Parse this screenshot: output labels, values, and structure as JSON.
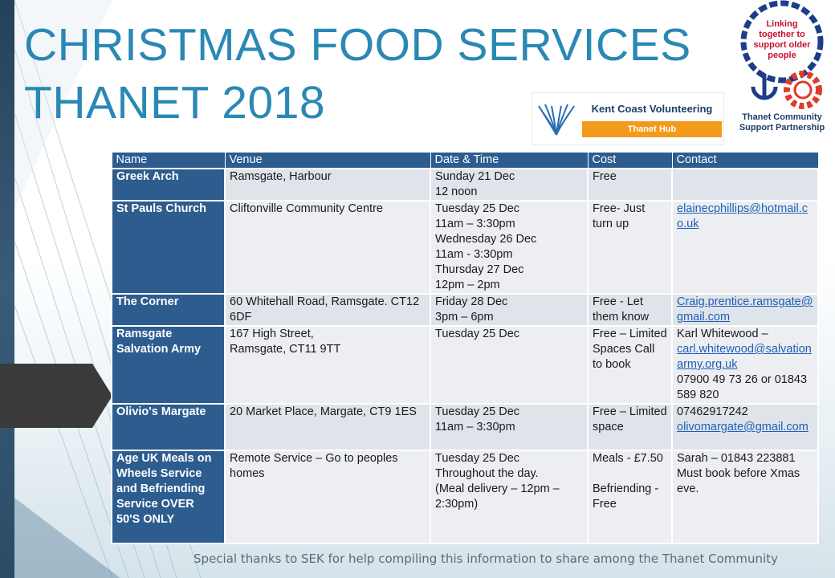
{
  "title": {
    "line1": "CHRISTMAS FOOD SERVICES",
    "line2": "THANET 2018"
  },
  "logos": {
    "kcv": {
      "name": "Kent Coast Volunteering",
      "hub": "Thanet Hub",
      "icon": "butterfly-wings-icon"
    },
    "tcsp": {
      "ring_text": "Linking together to support older people",
      "org": "Thanet Community Support Partnership",
      "icon": "chain-ring-icon"
    }
  },
  "table": {
    "headers": [
      "Name",
      "Venue",
      "Date & Time",
      "Cost",
      "Contact"
    ],
    "rows": [
      {
        "name": "Greek Arch",
        "venue": "Ramsgate, Harbour",
        "date": "Sunday 21 Dec\n12 noon",
        "cost": "Free",
        "contact": "",
        "link": ""
      },
      {
        "name": "St Pauls Church",
        "venue": "Cliftonville Community Centre",
        "date": "Tuesday 25 Dec\n11am – 3:30pm\nWednesday 26 Dec\n11am - 3:30pm\nThursday 27 Dec\n12pm – 2pm",
        "cost": "Free- Just turn up",
        "contact": "",
        "link": "elainecphillips@hotmail.co.uk"
      },
      {
        "name": "The Corner",
        "venue": "60 Whitehall Road, Ramsgate. CT12 6DF",
        "date": "Friday 28 Dec\n3pm – 6pm",
        "cost": "Free - Let them know",
        "contact": "",
        "link": "Craig.prentice.ramsgate@gmail.com"
      },
      {
        "name": "Ramsgate Salvation Army",
        "venue": "167 High Street,\nRamsgate, CT11 9TT",
        "date": "Tuesday 25 Dec",
        "cost": "Free – Limited Spaces Call to book",
        "contact_pre": "Karl Whitewood –",
        "link": "carl.whitewood@salvationarmy.org.uk",
        "contact": "07900 49 73 26 or 01843 589 820"
      },
      {
        "name": "Olivio's Margate",
        "venue": "20 Market Place, Margate, CT9 1ES",
        "date": "Tuesday 25 Dec\n11am – 3:30pm",
        "cost": "Free – Limited space",
        "contact_pre": "07462917242",
        "link": "olivomargate@gmail.com",
        "contact": ""
      },
      {
        "name": "Age UK Meals on Wheels Service and Befriending Service OVER 50'S ONLY",
        "venue": "Remote Service – Go to peoples homes",
        "date": "Tuesday 25 Dec\nThroughout the day.\n(Meal delivery – 12pm – 2:30pm)",
        "cost": "Meals - £7.50\n\nBefriending - Free",
        "contact": "Sarah – 01843 223881\nMust book before Xmas eve.",
        "link": ""
      }
    ]
  },
  "footer": "Special thanks to SEK for help compiling  this information  to share among  the Thanet Community",
  "colors": {
    "title": "#2a88b4",
    "header": "#2d5c8f",
    "cell": "#dfe3ea",
    "link": "#1f5fb5",
    "accent_orange": "#f39a1a"
  }
}
